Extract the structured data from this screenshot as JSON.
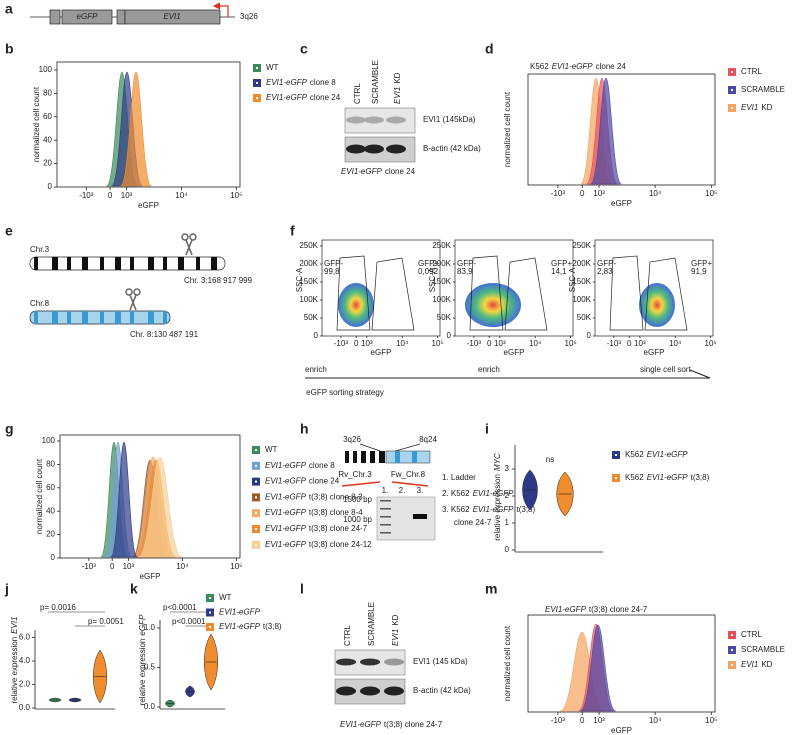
{
  "a": {
    "label": "a",
    "box1": "eGFP",
    "box2": "EVI1",
    "locus": "3q26"
  },
  "b": {
    "label": "b",
    "y_label": "normalized cell count",
    "x_label": "eGFP",
    "yticks": [
      0,
      20,
      40,
      60,
      80,
      100
    ],
    "xticks": [
      "-10³",
      "0",
      "10³",
      "10⁴",
      "10⁵"
    ],
    "legend": [
      {
        "name": "WT",
        "color": "#3b8a5a"
      },
      {
        "gene": "EVI1-eGFP",
        "name": "clone 8",
        "color": "#2f3a86"
      },
      {
        "gene": "EVI1-eGFP",
        "name": "clone 24",
        "color": "#f08c2e"
      }
    ]
  },
  "c": {
    "label": "c",
    "lanes": [
      {
        "name": "CTRL"
      },
      {
        "name": "SCRAMBLE"
      },
      {
        "gene": "EVI1",
        "name": "KD"
      }
    ],
    "bands": [
      "EVI1 (145kDa)",
      "B-actin (42 kDa)"
    ],
    "caption": {
      "gene": "EVI1-eGFP",
      "name": "clone 24"
    }
  },
  "d": {
    "label": "d",
    "title": {
      "pre": "K562",
      "gene": "EVI1-eGFP",
      "name": "clone 24"
    },
    "y_label": "normalized cell count",
    "x_label": "eGFP",
    "xticks": [
      "-10³",
      "0",
      "10³",
      "10⁴",
      "10⁵"
    ],
    "legend": [
      {
        "name": "CTRL",
        "color": "#e8505b"
      },
      {
        "name": "SCRAMBLE",
        "color": "#4a48a6"
      },
      {
        "gene": "EVI1",
        "name": "KD",
        "color": "#f5a35c"
      }
    ]
  },
  "e": {
    "label": "e",
    "chr3": "Chr.3",
    "chr3_site": "Chr. 3:168 917 999",
    "chr8": "Chr.8",
    "chr8_site": "Chr. 8:130 487 191"
  },
  "f": {
    "label": "f",
    "y_label": "SSC-A",
    "x_label": "eGFP",
    "yticks": [
      "0",
      "50K",
      "100K",
      "150K",
      "200K",
      "250K"
    ],
    "xticks": [
      "-10³",
      "0",
      "10³",
      "10⁴",
      "10⁵"
    ],
    "plots": [
      {
        "gfp_neg": "GFP-",
        "neg_pct": "99,8",
        "gfp_pos": "GFP+",
        "pos_pct": "0,092",
        "step": "enrich"
      },
      {
        "gfp_neg": "GFP-",
        "neg_pct": "83,9",
        "gfp_pos": "GFP+",
        "pos_pct": "14,1",
        "step": "enrich"
      },
      {
        "gfp_neg": "GFP-",
        "neg_pct": "2,83",
        "gfp_pos": "GFP+",
        "pos_pct": "91,9",
        "step": "single cell sort"
      }
    ],
    "strategy": "eGFP sorting strategy"
  },
  "g": {
    "label": "g",
    "y_label": "normalized cell count",
    "x_label": "eGFP",
    "yticks": [
      0,
      20,
      40,
      60,
      80,
      100
    ],
    "xticks": [
      "-10³",
      "0",
      "10³",
      "10⁴",
      "10⁵"
    ],
    "legend": [
      {
        "name": "WT",
        "color": "#3b8a5a"
      },
      {
        "gene": "EVI1-eGFP",
        "name": "clone 8",
        "color": "#6f9fd4"
      },
      {
        "gene": "EVI1-eGFP",
        "name": "clone 24",
        "color": "#2f3a86"
      },
      {
        "gene": "EVI1-eGFP",
        "name": "t(3;8) clone 8-3",
        "color": "#9a5a2a"
      },
      {
        "gene": "EVI1-eGFP",
        "name": "t(3;8) clone 8-4",
        "color": "#f3a86a"
      },
      {
        "gene": "EVI1-eGFP",
        "name": "t(3;8) clone 24-7",
        "color": "#f08c2e"
      },
      {
        "gene": "EVI1-eGFP",
        "name": "t(3;8) clone 24-12",
        "color": "#f7cf95"
      }
    ]
  },
  "h": {
    "label": "h",
    "loci": [
      "3q26",
      "8q24"
    ],
    "primers": [
      "Rv_Chr.3",
      "Fw_Chr.8"
    ],
    "lanes": [
      "1.",
      "2.",
      "3."
    ],
    "ladder": [
      "1500 bp",
      "1000 bp"
    ],
    "key": [
      {
        "name": "1. Ladder"
      },
      {
        "pre": "2. K562",
        "gene": "EVI1-eGFP"
      },
      {
        "pre": "3. K562",
        "gene": "EVI1-eGFP",
        "name": "t(3;8)"
      }
    ],
    "key_extra": "clone 24-7"
  },
  "i": {
    "label": "i",
    "y_label": {
      "pre": "relative expression",
      "gene": "MYC"
    },
    "yticks": [
      0,
      1,
      2,
      3
    ],
    "sig": "ns",
    "legend": [
      {
        "pre": "K562",
        "gene": "EVI1-eGFP",
        "color": "#2f3a86"
      },
      {
        "pre": "K562",
        "gene": "EVI1-eGFP",
        "name": "t(3;8)",
        "color": "#f08c2e"
      }
    ]
  },
  "j": {
    "label": "j",
    "pvalues": [
      "p= 0.0016",
      "p= 0.0051"
    ],
    "y_label": {
      "pre": "relative expression",
      "gene": "EVI1"
    },
    "yticks": [
      "0.0",
      "2.0",
      "4.0",
      "6.0"
    ]
  },
  "k": {
    "label": "k",
    "pvalues": [
      "p<0.0001",
      "p<0.0001"
    ],
    "y_label": {
      "pre": "relative expression",
      "gene": "eGFP"
    },
    "yticks": [
      "0.0",
      "0.5",
      "1.0"
    ],
    "legend": [
      {
        "name": "WT",
        "color": "#3b8a5a"
      },
      {
        "gene": "EVI1-eGFP",
        "color": "#2f3a86"
      },
      {
        "gene": "EVI1-eGFP",
        "name": "t(3;8)",
        "color": "#f08c2e"
      }
    ]
  },
  "l": {
    "label": "l",
    "lanes": [
      {
        "name": "CTRL"
      },
      {
        "name": "SCRAMBLE"
      },
      {
        "gene": "EVI1",
        "name": "KD"
      }
    ],
    "bands": [
      "EVI1 (145 kDa)",
      "B-actin (42 kDa)"
    ],
    "caption": {
      "gene": "EVI1-eGFP",
      "name": "t(3;8) clone 24-7"
    }
  },
  "m": {
    "label": "m",
    "title": {
      "gene": "EVI1-eGFP",
      "name": "t(3;8) clone 24-7"
    },
    "y_label": "normalized cell count",
    "x_label": "eGFP",
    "xticks": [
      "-10³",
      "0",
      "10³",
      "10⁴",
      "10⁵"
    ],
    "legend": [
      {
        "name": "CTRL",
        "color": "#e8505b"
      },
      {
        "name": "SCRAMBLE",
        "color": "#4a48a6"
      },
      {
        "gene": "EVI1",
        "name": "KD",
        "color": "#f5a35c"
      }
    ]
  }
}
